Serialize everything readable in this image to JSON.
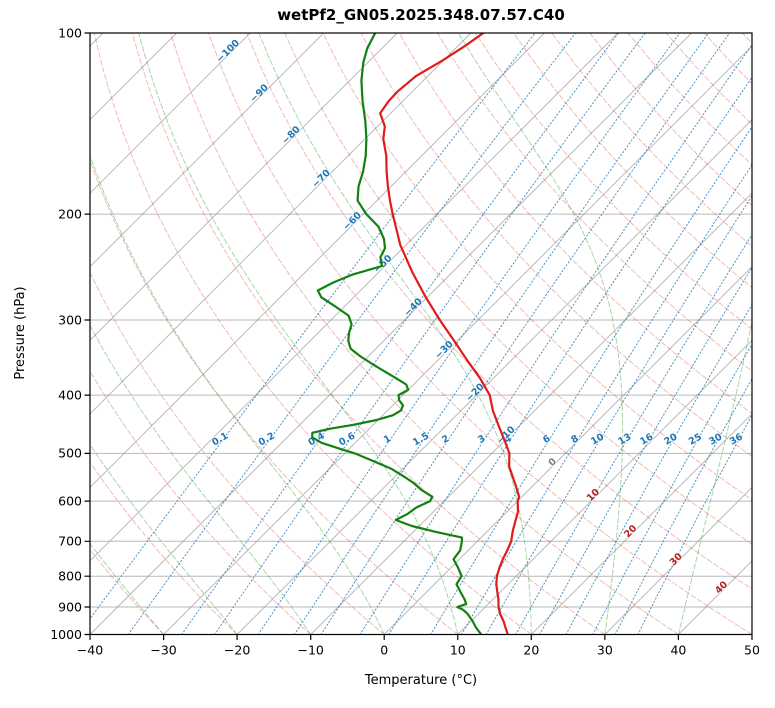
{
  "chart_data": {
    "type": "line",
    "subtype": "skew_t_log_p",
    "title": "wetPf2_GN05.2025.348.07.57.C40",
    "xlabel": "Temperature (°C)",
    "ylabel": "Pressure (hPa)",
    "xlim": [
      -40,
      50
    ],
    "pressure_lim": [
      1000,
      100
    ],
    "skew_degrees": 45,
    "x_ticks": [
      -40,
      -30,
      -20,
      -10,
      0,
      10,
      20,
      30,
      40,
      50
    ],
    "pressure_ticks": [
      100,
      200,
      300,
      400,
      500,
      600,
      700,
      800,
      900,
      1000
    ],
    "series": [
      {
        "name": "temperature",
        "color": "#e01b1b",
        "points": [
          [
            1000,
            16.8
          ],
          [
            975,
            15.6
          ],
          [
            950,
            14.4
          ],
          [
            925,
            13.0
          ],
          [
            900,
            11.8
          ],
          [
            875,
            10.8
          ],
          [
            850,
            9.6
          ],
          [
            825,
            8.4
          ],
          [
            800,
            7.4
          ],
          [
            775,
            6.6
          ],
          [
            750,
            5.9
          ],
          [
            725,
            5.3
          ],
          [
            700,
            4.6
          ],
          [
            675,
            3.5
          ],
          [
            650,
            2.5
          ],
          [
            625,
            1.5
          ],
          [
            610,
            0.6
          ],
          [
            600,
            0.0
          ],
          [
            590,
            -0.4
          ],
          [
            580,
            -1.2
          ],
          [
            565,
            -2.4
          ],
          [
            550,
            -3.7
          ],
          [
            525,
            -5.9
          ],
          [
            500,
            -7.6
          ],
          [
            475,
            -10.1
          ],
          [
            450,
            -12.8
          ],
          [
            425,
            -15.6
          ],
          [
            400,
            -18.2
          ],
          [
            375,
            -21.8
          ],
          [
            350,
            -26.0
          ],
          [
            325,
            -30.4
          ],
          [
            300,
            -35.2
          ],
          [
            275,
            -40.2
          ],
          [
            250,
            -45.4
          ],
          [
            225,
            -50.8
          ],
          [
            200,
            -56.0
          ],
          [
            190,
            -58.2
          ],
          [
            180,
            -60.4
          ],
          [
            170,
            -62.6
          ],
          [
            160,
            -64.8
          ],
          [
            150,
            -67.5
          ],
          [
            143,
            -69.0
          ],
          [
            136,
            -71.4
          ],
          [
            130,
            -71.9
          ],
          [
            125,
            -72.0
          ],
          [
            118,
            -71.6
          ],
          [
            111,
            -70.1
          ],
          [
            105,
            -69.0
          ],
          [
            100,
            -68.3
          ]
        ]
      },
      {
        "name": "dewpoint",
        "color": "#128112",
        "points": [
          [
            1000,
            13.2
          ],
          [
            975,
            11.6
          ],
          [
            950,
            10.2
          ],
          [
            925,
            8.6
          ],
          [
            910,
            7.4
          ],
          [
            900,
            6.2
          ],
          [
            890,
            7.0
          ],
          [
            875,
            6.2
          ],
          [
            850,
            4.6
          ],
          [
            825,
            3.0
          ],
          [
            800,
            2.6
          ],
          [
            775,
            1.0
          ],
          [
            750,
            -0.8
          ],
          [
            725,
            -1.1
          ],
          [
            700,
            -2.1
          ],
          [
            690,
            -2.6
          ],
          [
            675,
            -7.0
          ],
          [
            660,
            -11.0
          ],
          [
            645,
            -14.0
          ],
          [
            630,
            -13.2
          ],
          [
            615,
            -12.9
          ],
          [
            600,
            -11.9
          ],
          [
            590,
            -12.2
          ],
          [
            575,
            -14.6
          ],
          [
            560,
            -16.6
          ],
          [
            545,
            -19.0
          ],
          [
            530,
            -21.6
          ],
          [
            515,
            -25.0
          ],
          [
            500,
            -28.6
          ],
          [
            490,
            -31.6
          ],
          [
            480,
            -34.6
          ],
          [
            470,
            -36.6
          ],
          [
            462,
            -37.2
          ],
          [
            455,
            -35.4
          ],
          [
            448,
            -32.6
          ],
          [
            440,
            -30.2
          ],
          [
            432,
            -28.6
          ],
          [
            424,
            -28.2
          ],
          [
            416,
            -28.6
          ],
          [
            408,
            -29.8
          ],
          [
            400,
            -30.6
          ],
          [
            392,
            -30.0
          ],
          [
            384,
            -31.0
          ],
          [
            375,
            -33.2
          ],
          [
            365,
            -35.8
          ],
          [
            355,
            -38.4
          ],
          [
            345,
            -41.0
          ],
          [
            335,
            -43.4
          ],
          [
            325,
            -44.8
          ],
          [
            315,
            -45.8
          ],
          [
            305,
            -46.6
          ],
          [
            295,
            -48.2
          ],
          [
            285,
            -51.2
          ],
          [
            275,
            -54.4
          ],
          [
            268,
            -55.8
          ],
          [
            260,
            -54.8
          ],
          [
            252,
            -53.2
          ],
          [
            244,
            -50.4
          ],
          [
            236,
            -51.8
          ],
          [
            228,
            -52.4
          ],
          [
            220,
            -53.8
          ],
          [
            210,
            -56.2
          ],
          [
            200,
            -59.6
          ],
          [
            190,
            -62.6
          ],
          [
            180,
            -64.4
          ],
          [
            170,
            -65.8
          ],
          [
            160,
            -67.6
          ],
          [
            150,
            -69.8
          ],
          [
            140,
            -72.4
          ],
          [
            130,
            -75.4
          ],
          [
            120,
            -78.4
          ],
          [
            112,
            -80.6
          ],
          [
            106,
            -82.0
          ],
          [
            100,
            -83.0
          ]
        ]
      }
    ],
    "background": {
      "pressure_gridlines": {
        "color": "#8a8a8a"
      },
      "isotherms": {
        "min": -120,
        "max": 50,
        "step": 10,
        "color": "#8a8a8a"
      },
      "dry_adiabats": {
        "theta_min": -40,
        "theta_max": 200,
        "step": 10,
        "color": "#d62728"
      },
      "moist_adiabats": {
        "t0_min": -40,
        "t0_max": 90,
        "step": 10,
        "color": "#2ca02c"
      },
      "mixing_ratio_lines": {
        "values": [
          0.1,
          0.2,
          0.4,
          0.6,
          1,
          1.5,
          2,
          3,
          4,
          6,
          8,
          10,
          13,
          16,
          20,
          25,
          30,
          36
        ],
        "color": "#1f77b4",
        "label_pressure": 478
      }
    },
    "isotherm_labels": [
      {
        "t": -100,
        "p": 108,
        "color": "#1f77b4"
      },
      {
        "t": -90,
        "p": 127,
        "color": "#1f77b4"
      },
      {
        "t": -80,
        "p": 149,
        "color": "#1f77b4"
      },
      {
        "t": -70,
        "p": 176,
        "color": "#1f77b4"
      },
      {
        "t": -60,
        "p": 207,
        "color": "#1f77b4"
      },
      {
        "t": -50,
        "p": 244,
        "color": "#1f77b4"
      },
      {
        "t": -40,
        "p": 288,
        "color": "#1f77b4"
      },
      {
        "t": -30,
        "p": 339,
        "color": "#1f77b4"
      },
      {
        "t": -20,
        "p": 399,
        "color": "#1f77b4"
      },
      {
        "t": -10,
        "p": 470,
        "color": "#1f77b4"
      },
      {
        "t": 0,
        "p": 521,
        "color": "#7f7f7f"
      },
      {
        "t": 10,
        "p": 591,
        "color": "#b22222"
      },
      {
        "t": 20,
        "p": 679,
        "color": "#b22222"
      },
      {
        "t": 30,
        "p": 756,
        "color": "#b22222"
      },
      {
        "t": 40,
        "p": 842,
        "color": "#b22222"
      }
    ]
  }
}
